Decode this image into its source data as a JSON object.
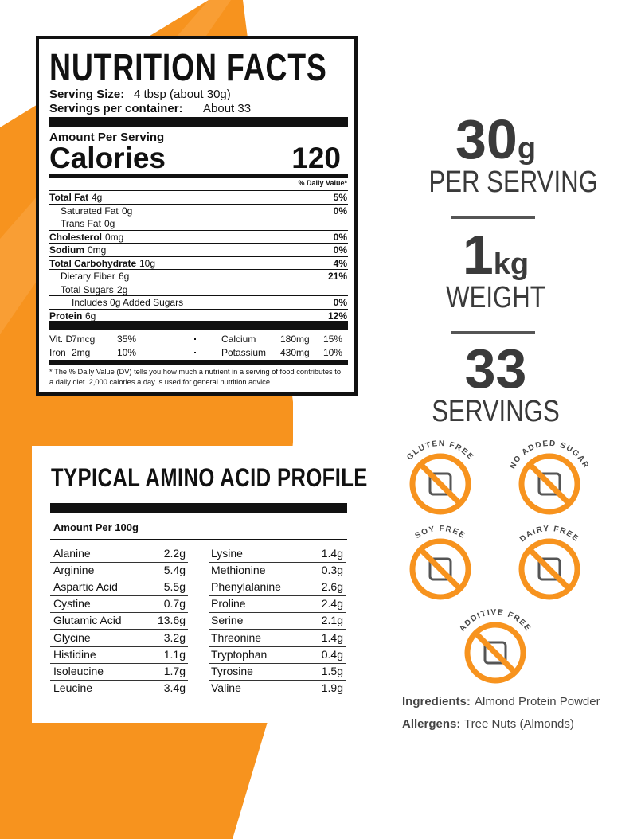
{
  "nutrition_facts": {
    "title": "NUTRITION FACTS",
    "serving_size": {
      "label": "Serving Size:",
      "value": "4 tbsp (about 30g)"
    },
    "servings_per_container": {
      "label": "Servings per container:",
      "value": "About 33"
    },
    "amount_per_serving": "Amount Per Serving",
    "calories": {
      "label": "Calories",
      "value": "120"
    },
    "daily_value_header": "% Daily Value*",
    "nutrients": [
      {
        "name": "Total Fat",
        "amount": "4g",
        "dv": "5%"
      },
      {
        "name": "Saturated Fat",
        "amount": "0g",
        "dv": "0%"
      },
      {
        "name": "Trans Fat",
        "amount": "0g"
      },
      {
        "name": "Cholesterol",
        "amount": "0mg",
        "dv": "0%"
      },
      {
        "name": "Sodium",
        "amount": "0mg",
        "dv": "0%"
      },
      {
        "name": "Total Carbohydrate",
        "amount": "10g",
        "dv": "4%"
      },
      {
        "name": "Dietary Fiber",
        "amount": "6g",
        "dv": "21%"
      },
      {
        "name": "Total Sugars",
        "amount": "2g"
      },
      {
        "name": "Includes 0g Added Sugars",
        "dv": "0%"
      },
      {
        "name": "Protein",
        "amount": "6g",
        "dv": "12%"
      }
    ],
    "minerals": [
      {
        "name": "Vit. D",
        "amount": "7mcg",
        "dv": "35%"
      },
      {
        "name": "Calcium",
        "amount": "180mg",
        "dv": "15%"
      },
      {
        "name": "Iron",
        "amount": "2mg",
        "dv": "10%"
      },
      {
        "name": "Potassium",
        "amount": "430mg",
        "dv": "10%"
      }
    ],
    "footnote": "* The % Daily Value (DV) tells you how much a nutrient in a serving of food contributes to a daily diet. 2,000 calories a day is used for general nutrition advice."
  },
  "amino_acids": {
    "title": "TYPICAL AMINO ACID PROFILE",
    "subtitle": "Amount Per 100g",
    "rows": [
      [
        "Alanine",
        "2.2g"
      ],
      [
        "Arginine",
        "5.4g"
      ],
      [
        "Aspartic Acid",
        "5.5g"
      ],
      [
        "Cystine",
        "0.7g"
      ],
      [
        "Glutamic Acid",
        "13.6g"
      ],
      [
        "Glycine",
        "3.2g"
      ],
      [
        "Histidine",
        "1.1g"
      ],
      [
        "Isoleucine",
        "1.7g"
      ],
      [
        "Leucine",
        "3.4g"
      ],
      [
        "Lysine",
        "1.4g"
      ],
      [
        "Methionine",
        "0.3g"
      ],
      [
        "Phenylalanine",
        "2.6g"
      ],
      [
        "Proline",
        "2.4g"
      ],
      [
        "Serine",
        "2.1g"
      ],
      [
        "Threonine",
        "1.4g"
      ],
      [
        "Tryptophan",
        "0.4g"
      ],
      [
        "Tyrosine",
        "1.5g"
      ],
      [
        "Valine",
        "1.9g"
      ]
    ]
  },
  "stats": [
    {
      "value": "30",
      "unit": "g",
      "label": "PER SERVING"
    },
    {
      "value": "1",
      "unit": "kg",
      "label": "WEIGHT"
    },
    {
      "value": "33",
      "label": "SERVINGS"
    }
  ],
  "badges": [
    "GLUTEN FREE",
    "NO ADDED SUGAR",
    "SOY FREE",
    "DAIRY FREE",
    "ADDITIVE FREE"
  ],
  "ingredients": {
    "label": "Ingredients:",
    "value": "Almond Protein Powder"
  },
  "allergens": {
    "label": "Allergens:",
    "value": "Tree Nuts (Almonds)"
  }
}
